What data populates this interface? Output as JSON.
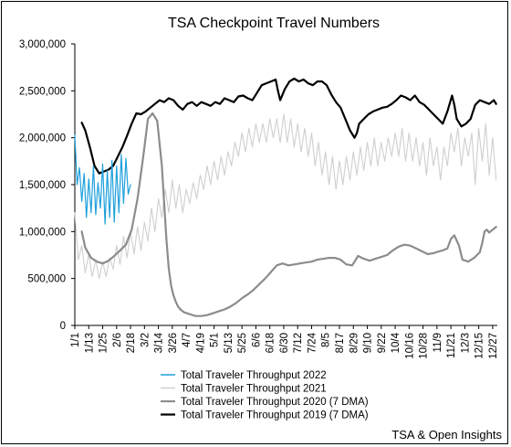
{
  "chart_data": {
    "type": "line",
    "title": "TSA Checkpoint Travel Numbers",
    "xlabel": "",
    "ylabel": "",
    "ylim": [
      0,
      3000000
    ],
    "grid": false,
    "legend_position": "bottom",
    "yticks": [
      "0",
      "500,000",
      "1,000,000",
      "1,500,000",
      "2,000,000",
      "2,500,000",
      "3,000,000"
    ],
    "xticks": [
      "1/1",
      "1/13",
      "1/25",
      "2/6",
      "2/18",
      "3/2",
      "3/14",
      "3/26",
      "4/7",
      "4/19",
      "5/1",
      "5/13",
      "5/25",
      "6/6",
      "6/18",
      "6/30",
      "7/12",
      "7/24",
      "8/5",
      "8/17",
      "8/29",
      "9/10",
      "9/22",
      "10/4",
      "10/16",
      "10/28",
      "11/9",
      "11/21",
      "12/3",
      "12/15",
      "12/27"
    ],
    "series": [
      {
        "name": "Total Traveler Throughput 2022",
        "color": "#1ea0dc",
        "width": 1.2,
        "x": [
          1,
          3,
          5,
          7,
          9,
          11,
          13,
          15,
          17,
          19,
          21,
          23,
          25,
          27,
          29,
          31,
          33,
          35,
          37,
          39,
          41,
          43,
          45,
          47,
          49
        ],
        "y": [
          2030000,
          1500000,
          1680000,
          1320000,
          1620000,
          1150000,
          1560000,
          1200000,
          1700000,
          1180000,
          1520000,
          1250000,
          1720000,
          1080000,
          1650000,
          1150000,
          1760000,
          1100000,
          1700000,
          1200000,
          1820000,
          1300000,
          1780000,
          1400000,
          1500000
        ]
      },
      {
        "name": "Total Traveler Throughput 2021",
        "color": "#cfcfcf",
        "width": 1.1,
        "x": [
          1,
          4,
          7,
          10,
          13,
          16,
          19,
          22,
          25,
          28,
          31,
          34,
          37,
          40,
          43,
          46,
          49,
          52,
          55,
          58,
          61,
          64,
          67,
          70,
          73,
          76,
          79,
          82,
          85,
          88,
          91,
          94,
          97,
          100,
          103,
          106,
          109,
          112,
          115,
          118,
          121,
          124,
          127,
          130,
          133,
          136,
          139,
          142,
          145,
          148,
          151,
          154,
          157,
          160,
          163,
          166,
          169,
          172,
          175,
          178,
          181,
          184,
          187,
          190,
          193,
          196,
          199,
          202,
          205,
          208,
          211,
          214,
          217,
          220,
          223,
          226,
          229,
          232,
          235,
          238,
          241,
          244,
          247,
          250,
          253,
          256,
          259,
          262,
          265,
          268,
          271,
          274,
          277,
          280,
          283,
          286,
          289,
          292,
          295,
          298,
          301,
          304,
          307,
          310,
          313,
          316,
          319,
          322,
          325,
          328,
          331,
          334,
          337,
          340,
          343,
          346,
          349,
          352,
          355,
          358,
          361,
          364
        ],
        "y": [
          1200000,
          700000,
          850000,
          560000,
          760000,
          520000,
          700000,
          500000,
          680000,
          520000,
          720000,
          600000,
          850000,
          650000,
          950000,
          720000,
          1000000,
          760000,
          1050000,
          800000,
          1100000,
          900000,
          1250000,
          1000000,
          1350000,
          1150000,
          1450000,
          1200000,
          1550000,
          1250000,
          1500000,
          1200000,
          1450000,
          1300000,
          1520000,
          1350000,
          1600000,
          1450000,
          1700000,
          1500000,
          1750000,
          1550000,
          1800000,
          1600000,
          1850000,
          1700000,
          1950000,
          1800000,
          2050000,
          1850000,
          2100000,
          1900000,
          2150000,
          1950000,
          2150000,
          1950000,
          2200000,
          2000000,
          2200000,
          1950000,
          2250000,
          1950000,
          2200000,
          1900000,
          2150000,
          1850000,
          2100000,
          1800000,
          2050000,
          1700000,
          1950000,
          1600000,
          1850000,
          1500000,
          1800000,
          1450000,
          1750000,
          1500000,
          1800000,
          1550000,
          1850000,
          1600000,
          1900000,
          1650000,
          1950000,
          1700000,
          2000000,
          1700000,
          1950000,
          1750000,
          2000000,
          1800000,
          2050000,
          1800000,
          2100000,
          1750000,
          2050000,
          1750000,
          2000000,
          1700000,
          1950000,
          1600000,
          2000000,
          1700000,
          1900000,
          1550000,
          1900000,
          1700000,
          2050000,
          1850000,
          2100000,
          1700000,
          2000000,
          1800000,
          2050000,
          1500000,
          2100000,
          1750000,
          2150000,
          1600000,
          2000000,
          1550000
        ]
      },
      {
        "name": "Total Traveler Throughput 2020 (7 DMA)",
        "color": "#8c8c8c",
        "width": 2.2,
        "x": [
          7,
          10,
          15,
          20,
          25,
          30,
          35,
          40,
          45,
          50,
          55,
          60,
          64,
          68,
          72,
          76,
          78,
          80,
          82,
          84,
          86,
          88,
          90,
          92,
          95,
          100,
          105,
          110,
          115,
          120,
          125,
          130,
          135,
          140,
          145,
          150,
          155,
          160,
          165,
          170,
          175,
          180,
          185,
          190,
          195,
          200,
          205,
          210,
          215,
          220,
          225,
          230,
          235,
          240,
          245,
          250,
          255,
          260,
          265,
          270,
          275,
          280,
          285,
          290,
          295,
          300,
          305,
          310,
          315,
          318,
          322,
          325,
          328,
          332,
          335,
          340,
          345,
          350,
          352,
          354,
          356,
          358,
          360,
          362,
          364
        ],
        "y": [
          1000000,
          830000,
          720000,
          680000,
          660000,
          690000,
          740000,
          800000,
          860000,
          1020000,
          1350000,
          1800000,
          2200000,
          2260000,
          2180000,
          1700000,
          1300000,
          900000,
          600000,
          420000,
          320000,
          250000,
          200000,
          170000,
          140000,
          120000,
          100000,
          100000,
          110000,
          130000,
          150000,
          170000,
          200000,
          240000,
          290000,
          330000,
          380000,
          440000,
          500000,
          570000,
          640000,
          660000,
          640000,
          650000,
          660000,
          670000,
          680000,
          700000,
          710000,
          720000,
          720000,
          700000,
          650000,
          640000,
          740000,
          710000,
          690000,
          710000,
          730000,
          750000,
          800000,
          840000,
          860000,
          850000,
          820000,
          790000,
          760000,
          770000,
          790000,
          800000,
          820000,
          920000,
          960000,
          850000,
          700000,
          680000,
          720000,
          780000,
          880000,
          1000000,
          1020000,
          990000,
          1010000,
          1030000,
          1050000
        ]
      },
      {
        "name": "Total Traveler Throughput 2019 (7 DMA)",
        "color": "#000000",
        "width": 2.2,
        "x": [
          7,
          10,
          14,
          18,
          22,
          26,
          30,
          34,
          38,
          42,
          46,
          50,
          54,
          58,
          62,
          66,
          70,
          74,
          78,
          82,
          86,
          90,
          94,
          98,
          102,
          106,
          110,
          114,
          118,
          122,
          126,
          130,
          134,
          138,
          142,
          146,
          150,
          154,
          158,
          162,
          166,
          170,
          174,
          176,
          178,
          182,
          186,
          190,
          194,
          198,
          202,
          206,
          210,
          214,
          218,
          222,
          226,
          230,
          234,
          238,
          242,
          244,
          246,
          250,
          254,
          258,
          262,
          266,
          270,
          274,
          278,
          282,
          286,
          290,
          294,
          298,
          302,
          306,
          310,
          314,
          318,
          322,
          326,
          328,
          330,
          334,
          338,
          342,
          346,
          350,
          354,
          358,
          362,
          364
        ],
        "y": [
          2160000,
          2080000,
          1900000,
          1700000,
          1620000,
          1640000,
          1660000,
          1700000,
          1800000,
          1900000,
          2020000,
          2150000,
          2260000,
          2250000,
          2280000,
          2320000,
          2360000,
          2400000,
          2380000,
          2420000,
          2400000,
          2340000,
          2300000,
          2360000,
          2380000,
          2340000,
          2380000,
          2360000,
          2340000,
          2380000,
          2360000,
          2420000,
          2400000,
          2380000,
          2440000,
          2450000,
          2420000,
          2400000,
          2480000,
          2560000,
          2580000,
          2600000,
          2620000,
          2500000,
          2400000,
          2520000,
          2600000,
          2630000,
          2600000,
          2620000,
          2580000,
          2560000,
          2600000,
          2600000,
          2560000,
          2460000,
          2380000,
          2320000,
          2200000,
          2080000,
          2000000,
          2050000,
          2150000,
          2200000,
          2250000,
          2280000,
          2300000,
          2320000,
          2330000,
          2360000,
          2400000,
          2450000,
          2430000,
          2400000,
          2450000,
          2380000,
          2350000,
          2300000,
          2250000,
          2200000,
          2150000,
          2280000,
          2450000,
          2350000,
          2200000,
          2120000,
          2150000,
          2200000,
          2350000,
          2400000,
          2380000,
          2360000,
          2400000,
          2360000
        ]
      }
    ]
  },
  "source": "TSA & Open Insights"
}
